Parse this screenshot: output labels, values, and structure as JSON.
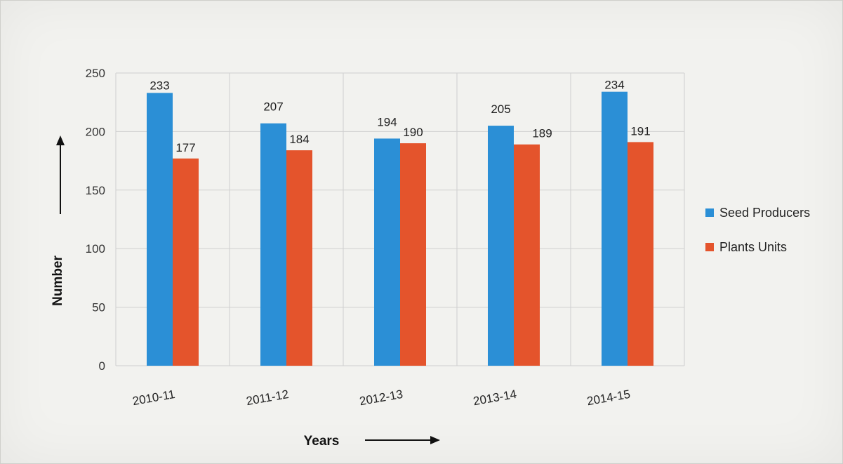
{
  "chart_data": {
    "type": "bar",
    "categories": [
      "2010-11",
      "2011-12",
      "2012-13",
      "2013-14",
      "2014-15"
    ],
    "series": [
      {
        "name": "Seed Producers",
        "values": [
          233,
          207,
          194,
          205,
          234
        ],
        "color": "#2b8fd6"
      },
      {
        "name": "Plants Units",
        "values": [
          177,
          184,
          190,
          189,
          191
        ],
        "color": "#e4542c"
      }
    ],
    "xlabel": "Years",
    "ylabel": "Number",
    "ylim": [
      0,
      250
    ],
    "yticks": [
      0,
      50,
      100,
      150,
      200,
      250
    ],
    "grid": true,
    "legend_position": "right"
  }
}
